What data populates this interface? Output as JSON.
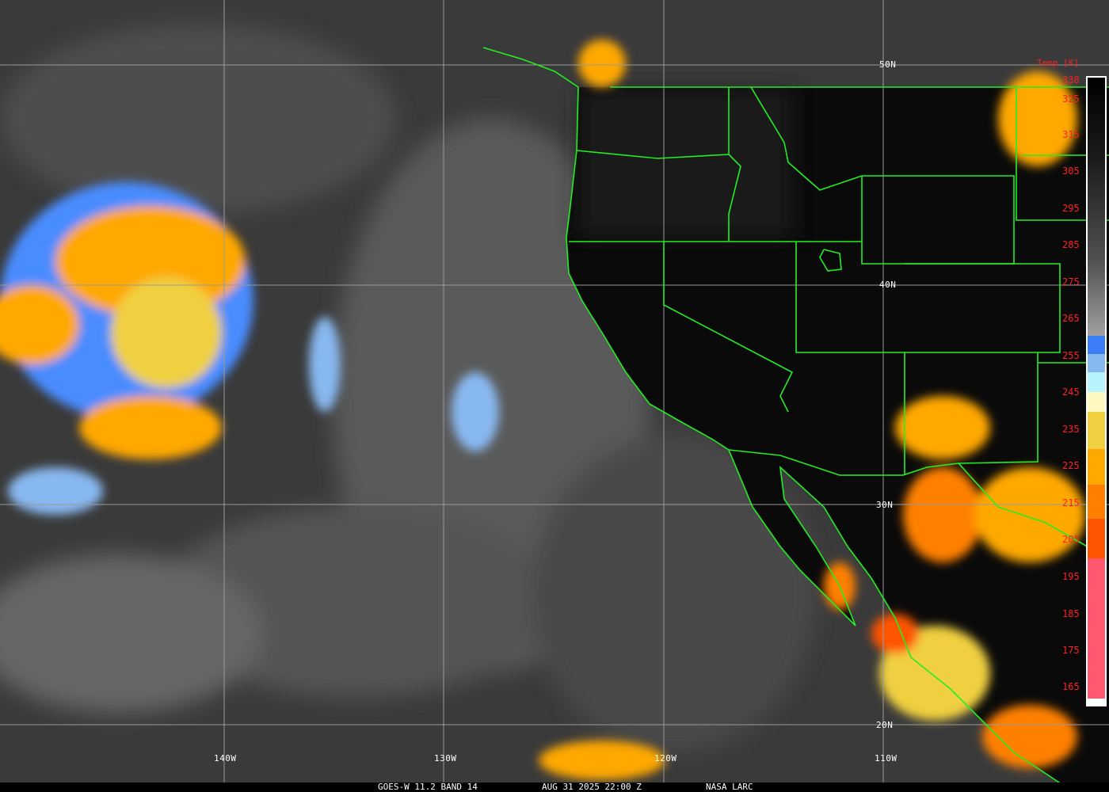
{
  "caption": {
    "product": "GOES-W 11.2 BAND 14",
    "datetime": "AUG 31 2025 22:00 Z",
    "credit": "NASA LARC"
  },
  "latitude_labels": [
    "50N",
    "40N",
    "30N",
    "20N"
  ],
  "longitude_labels": [
    "140W",
    "130W",
    "120W",
    "110W"
  ],
  "legend": {
    "title": "Temp [K]",
    "ticks": [
      "330",
      "325",
      "315",
      "305",
      "295",
      "285",
      "275",
      "265",
      "255",
      "245",
      "235",
      "225",
      "215",
      "205",
      "195",
      "185",
      "175",
      "165"
    ],
    "color_stops": [
      "#000000",
      "#1a1a1a",
      "#505050",
      "#a0a0a0",
      "#3a7ff7",
      "#88b8f0",
      "#b8f4ff",
      "#fff8c0",
      "#f0d040",
      "#ffa800",
      "#ff8000",
      "#ff5500",
      "#ff5870"
    ]
  },
  "colors": {
    "borders": "#22ee22",
    "grid": "#9a9a9a",
    "labels": "#ffffff",
    "legend_text": "#ff2020"
  }
}
